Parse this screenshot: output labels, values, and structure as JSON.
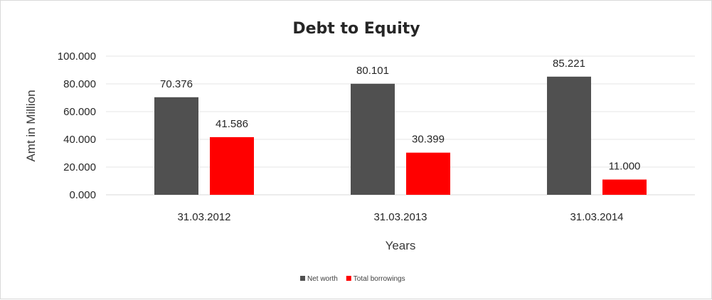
{
  "chart_data": {
    "type": "bar",
    "title": "Debt to Equity",
    "xlabel": "Years",
    "ylabel": "Amt in Million",
    "categories": [
      "31.03.2012",
      "31.03.2013",
      "31.03.2014"
    ],
    "series": [
      {
        "name": "Net worth",
        "values": [
          70.376,
          80.101,
          85.221
        ],
        "color": "#505050"
      },
      {
        "name": "Total borrowings",
        "values": [
          41.586,
          30.399,
          11.0
        ],
        "color": "#ff0000"
      }
    ],
    "ylim": [
      0,
      100
    ],
    "yticks": [
      "0.000",
      "20.000",
      "40.000",
      "60.000",
      "80.000",
      "100.000"
    ],
    "data_labels": [
      [
        "70.376",
        "80.101",
        "85.221"
      ],
      [
        "41.586",
        "30.399",
        "11.000"
      ]
    ],
    "grid": true,
    "legend_position": "bottom"
  }
}
